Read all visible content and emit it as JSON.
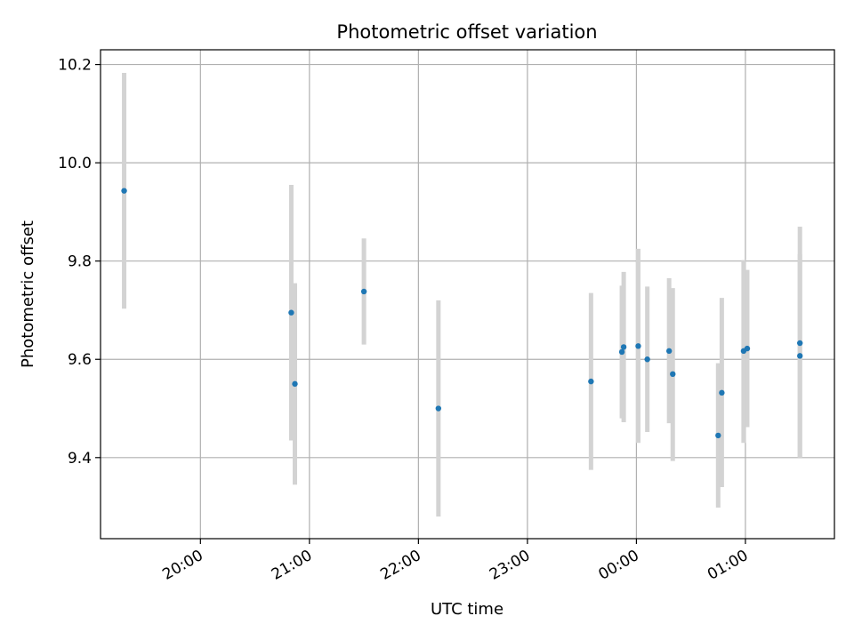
{
  "chart_data": {
    "type": "scatter",
    "title": "Photometric offset variation",
    "xlabel": "UTC time",
    "ylabel": "Photometric offset",
    "x_axis_kind": "time",
    "x_ticks": [
      "20:00",
      "21:00",
      "22:00",
      "23:00",
      "00:00",
      "01:00"
    ],
    "y_ticks": [
      9.4,
      9.6,
      9.8,
      10.0,
      10.2
    ],
    "xlim": [
      "19:05",
      "01:49"
    ],
    "ylim": [
      9.235,
      10.23
    ],
    "grid": true,
    "colors": {
      "point": "#1f77b4",
      "errorbar": "#d3d3d3",
      "grid": "#b0b0b0"
    },
    "points": [
      {
        "x": "19:18",
        "y": 9.943,
        "ylow": 9.703,
        "yhigh": 10.183
      },
      {
        "x": "20:50",
        "y": 9.695,
        "ylow": 9.435,
        "yhigh": 9.955
      },
      {
        "x": "20:52",
        "y": 9.55,
        "ylow": 9.345,
        "yhigh": 9.755
      },
      {
        "x": "21:30",
        "y": 9.738,
        "ylow": 9.63,
        "yhigh": 9.846
      },
      {
        "x": "22:11",
        "y": 9.5,
        "ylow": 9.28,
        "yhigh": 9.72
      },
      {
        "x": "23:35",
        "y": 9.555,
        "ylow": 9.375,
        "yhigh": 9.735
      },
      {
        "x": "23:52",
        "y": 9.615,
        "ylow": 9.48,
        "yhigh": 9.75
      },
      {
        "x": "23:53",
        "y": 9.625,
        "ylow": 9.472,
        "yhigh": 9.778
      },
      {
        "x": "00:01",
        "y": 9.627,
        "ylow": 9.43,
        "yhigh": 9.825
      },
      {
        "x": "00:06",
        "y": 9.6,
        "ylow": 9.452,
        "yhigh": 9.748
      },
      {
        "x": "00:18",
        "y": 9.617,
        "ylow": 9.47,
        "yhigh": 9.765
      },
      {
        "x": "00:20",
        "y": 9.57,
        "ylow": 9.393,
        "yhigh": 9.745
      },
      {
        "x": "00:45",
        "y": 9.445,
        "ylow": 9.298,
        "yhigh": 9.592
      },
      {
        "x": "00:47",
        "y": 9.532,
        "ylow": 9.34,
        "yhigh": 9.725
      },
      {
        "x": "00:59",
        "y": 9.617,
        "ylow": 9.43,
        "yhigh": 9.802
      },
      {
        "x": "01:01",
        "y": 9.622,
        "ylow": 9.462,
        "yhigh": 9.782
      },
      {
        "x": "01:30",
        "y": 9.633,
        "ylow": 9.4,
        "yhigh": 9.87
      },
      {
        "x": "01:30",
        "y": 9.607,
        "ylow": 9.4,
        "yhigh": 9.814
      }
    ]
  }
}
